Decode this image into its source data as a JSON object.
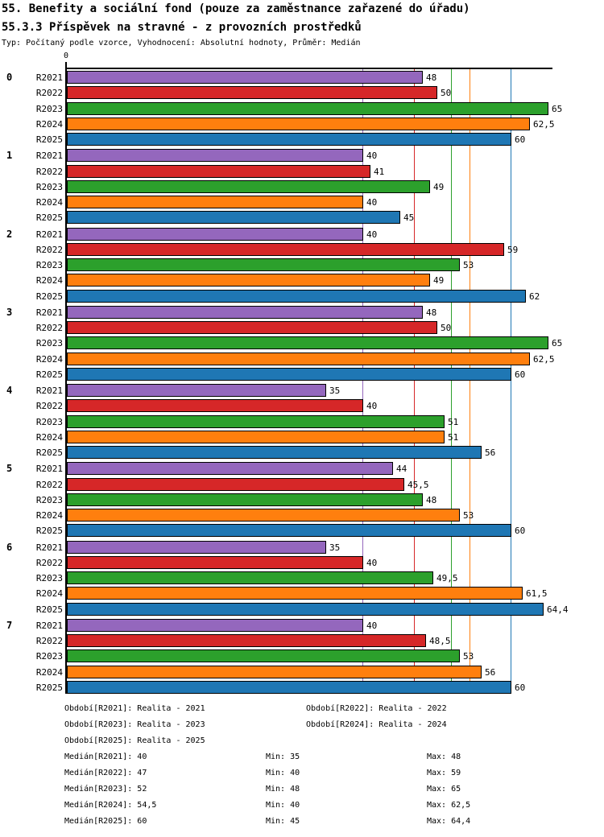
{
  "header": {
    "title": "55. Benefity a sociální fond (pouze za zaměstnance zařazené do úřadu)",
    "subtitle": "55.3.3 Příspěvek na stravné - z provozních prostředků",
    "meta": "Typ: Počítaný podle vzorce, Vyhodnocení: Absolutní hodnoty, Průměr: Medián"
  },
  "chart_data": {
    "type": "bar",
    "orientation": "horizontal",
    "x_axis": {
      "origin_label": "0",
      "min": 0,
      "max": 65.65,
      "grid": "median-lines-per-series"
    },
    "legend_position": "bottom",
    "series": [
      {
        "name": "R2021",
        "color": "#9467bd",
        "median": 40,
        "min": 35,
        "max": 48
      },
      {
        "name": "R2022",
        "color": "#d62728",
        "median": 47,
        "min": 40,
        "max": 59
      },
      {
        "name": "R2023",
        "color": "#2ca02c",
        "median": 52,
        "min": 48,
        "max": 65
      },
      {
        "name": "R2024",
        "color": "#ff7f0e",
        "median": 54.5,
        "min": 40,
        "max": 62.5
      },
      {
        "name": "R2025",
        "color": "#1f77b4",
        "median": 60,
        "min": 45,
        "max": 64.4
      }
    ],
    "categories": [
      "0",
      "1",
      "2",
      "3",
      "4",
      "5",
      "6",
      "7"
    ],
    "groups": [
      {
        "label": "0",
        "values": [
          48,
          50,
          65,
          62.5,
          60
        ],
        "value_labels": [
          "48",
          "50",
          "65",
          "62,5",
          "60"
        ]
      },
      {
        "label": "1",
        "values": [
          40,
          41,
          49,
          40,
          45
        ],
        "value_labels": [
          "40",
          "41",
          "49",
          "40",
          "45"
        ]
      },
      {
        "label": "2",
        "values": [
          40,
          59,
          53,
          49,
          62
        ],
        "value_labels": [
          "40",
          "59",
          "53",
          "49",
          "62"
        ]
      },
      {
        "label": "3",
        "values": [
          48,
          50,
          65,
          62.5,
          60
        ],
        "value_labels": [
          "48",
          "50",
          "65",
          "62,5",
          "60"
        ]
      },
      {
        "label": "4",
        "values": [
          35,
          40,
          51,
          51,
          56
        ],
        "value_labels": [
          "35",
          "40",
          "51",
          "51",
          "56"
        ]
      },
      {
        "label": "5",
        "values": [
          44,
          45.5,
          48,
          53,
          60
        ],
        "value_labels": [
          "44",
          "45,5",
          "48",
          "53",
          "60"
        ]
      },
      {
        "label": "6",
        "values": [
          35,
          40,
          49.5,
          61.5,
          64.4
        ],
        "value_labels": [
          "35",
          "40",
          "49,5",
          "61,5",
          "64,4"
        ]
      },
      {
        "label": "7",
        "values": [
          40,
          48.5,
          53,
          56,
          60
        ],
        "value_labels": [
          "40",
          "48,5",
          "53",
          "56",
          "60"
        ]
      }
    ]
  },
  "footer": {
    "legend_rows": [
      [
        "Období[R2021]: Realita - 2021",
        "Období[R2022]: Realita - 2022"
      ],
      [
        "Období[R2023]: Realita - 2023",
        "Období[R2024]: Realita - 2024"
      ],
      [
        "Období[R2025]: Realita - 2025"
      ]
    ],
    "stats_rows": [
      [
        "Medián[R2021]: 40",
        "Min: 35",
        "Max: 48"
      ],
      [
        "Medián[R2022]: 47",
        "Min: 40",
        "Max: 59"
      ],
      [
        "Medián[R2023]: 52",
        "Min: 48",
        "Max: 65"
      ],
      [
        "Medián[R2024]: 54,5",
        "Min: 40",
        "Max: 62,5"
      ],
      [
        "Medián[R2025]: 60",
        "Min: 45",
        "Max: 64,4"
      ]
    ]
  }
}
